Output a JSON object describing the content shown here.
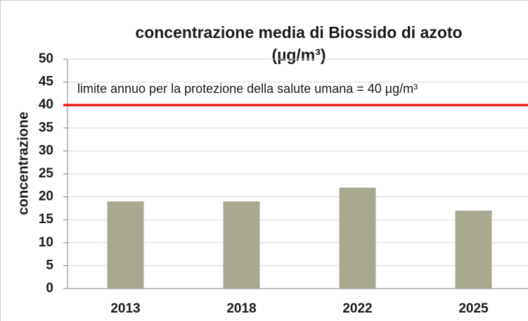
{
  "chart_data": {
    "type": "bar",
    "title": [
      "concentrazione media di Biossido di azoto",
      "(µg/m³)"
    ],
    "y_label": "concentrazione",
    "categories": [
      "2013",
      "2018",
      "2022",
      "2025"
    ],
    "values": [
      19,
      19,
      22,
      17
    ],
    "color": "#a9a891",
    "ylim": [
      0,
      50
    ],
    "yticks": [
      0,
      5,
      10,
      15,
      20,
      25,
      30,
      35,
      40,
      45,
      50
    ],
    "grid": true,
    "threshold": {
      "value": 40,
      "color": "#e8201c",
      "label": "limite annuo per la protezione della salute umana = 40 µg/m³"
    }
  }
}
